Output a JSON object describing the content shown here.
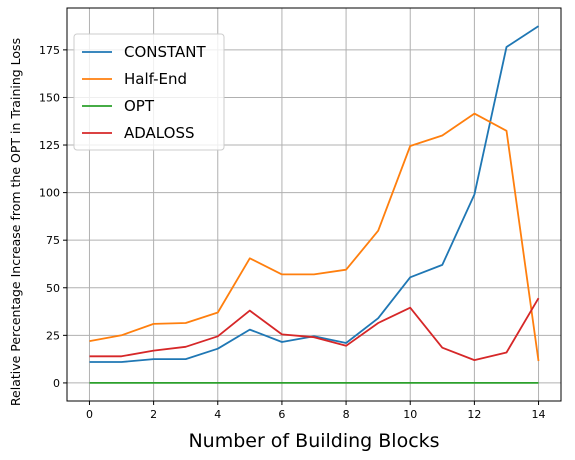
{
  "chart_data": {
    "type": "line",
    "xlabel": "Number of Building Blocks",
    "ylabel": "Relative Percentage Increase from the OPT in Training Loss",
    "x": [
      0,
      1,
      2,
      3,
      4,
      5,
      6,
      7,
      8,
      9,
      10,
      11,
      12,
      13,
      14
    ],
    "xlim": [
      -0.7,
      14.7
    ],
    "ylim": [
      -9.5,
      197
    ],
    "xticks": [
      0,
      2,
      4,
      6,
      8,
      10,
      12,
      14
    ],
    "xtick_labels": [
      "0",
      "2",
      "4",
      "6",
      "8",
      "10",
      "12",
      "14"
    ],
    "yticks": [
      0,
      25,
      50,
      75,
      100,
      125,
      150,
      175
    ],
    "ytick_labels": [
      "0",
      "25",
      "50",
      "75",
      "100",
      "125",
      "150",
      "175"
    ],
    "grid": true,
    "legend_position": "top-left",
    "series": [
      {
        "name": "CONSTANT",
        "color": "#1f77b4",
        "values": [
          11,
          11,
          12.5,
          12.5,
          18,
          28,
          21.5,
          24.5,
          21,
          34,
          55.5,
          62,
          99,
          176.5,
          187.5
        ]
      },
      {
        "name": "Half-End",
        "color": "#ff7f0e",
        "values": [
          22,
          25,
          31,
          31.5,
          37,
          65.5,
          57,
          57,
          59.5,
          80,
          124.5,
          130,
          141.5,
          132.5,
          11.5
        ]
      },
      {
        "name": "OPT",
        "color": "#2ca02c",
        "values": [
          0,
          0,
          0,
          0,
          0,
          0,
          0,
          0,
          0,
          0,
          0,
          0,
          0,
          0,
          0
        ]
      },
      {
        "name": "ADALOSS",
        "color": "#d62728",
        "values": [
          14,
          14,
          17,
          19,
          24.5,
          38,
          25.5,
          24,
          19.5,
          31.5,
          39.5,
          18.5,
          12,
          16,
          44.5
        ]
      }
    ]
  }
}
